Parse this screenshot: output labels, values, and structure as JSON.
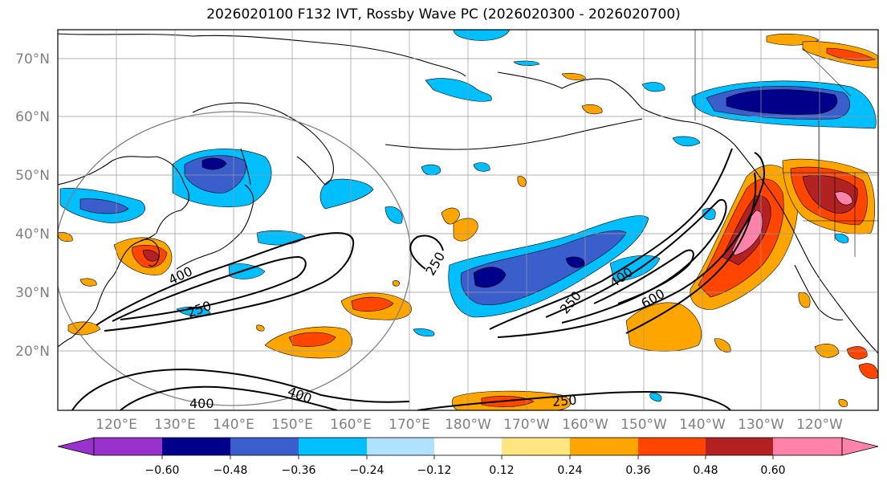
{
  "title": "2026020100 F132 IVT, Rossby Wave PC (2026020300 - 2026020700)",
  "lat_labels": [
    "70°N",
    "60°N",
    "50°N",
    "40°N",
    "30°N",
    "20°N"
  ],
  "lon_labels": [
    "120°E",
    "130°E",
    "140°E",
    "150°E",
    "160°E",
    "170°E",
    "180°W",
    "170°W",
    "160°W",
    "150°W",
    "140°W",
    "130°W",
    "120°W"
  ],
  "contour_labels": [
    "400",
    "250",
    "250",
    "400",
    "400",
    "250",
    "400",
    "600",
    "250"
  ],
  "colorbar": {
    "ticks": [
      "−0.60",
      "−0.48",
      "−0.36",
      "−0.24",
      "−0.12",
      "0.12",
      "0.24",
      "0.36",
      "0.48",
      "0.60"
    ],
    "colors": [
      "#9932CC",
      "#00008B",
      "#3A5FCD",
      "#00BFFF",
      "#B0E2FF",
      "#FFFFFF",
      "#FFE680",
      "#FFA500",
      "#FF4500",
      "#B22222",
      "#FF82AB",
      "#FF82AB"
    ]
  },
  "palette": {
    "darkblue": "#00008B",
    "blue": "#3A5FCD",
    "cyan": "#00BFFF",
    "lightblue": "#B0E2FF",
    "yellow": "#FFE680",
    "orange": "#FFA500",
    "red": "#FF4500",
    "darkred": "#B22222",
    "pink": "#FF82AB"
  }
}
